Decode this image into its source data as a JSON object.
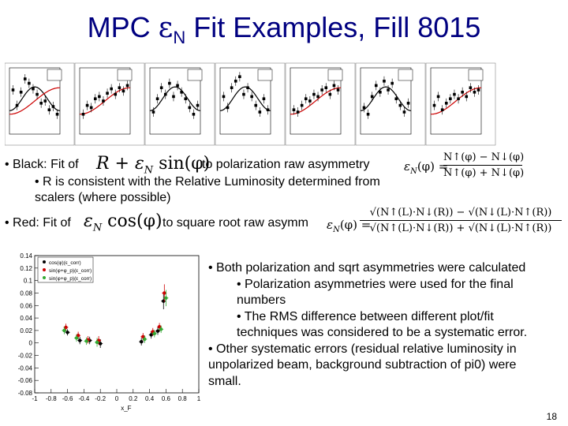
{
  "title": {
    "prefix": "MPC ",
    "epsilon": "ε",
    "sub": "N",
    "suffix": " Fit Examples, Fill 8015"
  },
  "bullets_top": {
    "black_prefix": "• Black: Fit of",
    "black_suffix": "to polarization raw asymmetry",
    "black_sub1": "• R is consistent with the Relative Luminosity determined from",
    "black_sub2": "scalers (where possible)",
    "red_prefix": "• Red: Fit of",
    "red_suffix": "to square root raw asymm"
  },
  "formulas": {
    "fit_black": {
      "a": "R + ε",
      "sub": "N",
      "b": " sin(φ)"
    },
    "fit_red": {
      "a": "ε",
      "sub": "N",
      "b": " cos(φ)"
    },
    "eps_label": "ε",
    "eps_sub": "N",
    "eps_arg": "(φ) =",
    "raw_num": "N↑(φ) − N↓(φ)",
    "raw_den": "N↑(φ) + N↓(φ)",
    "sqrt_num": "√(N↑(L)·N↓(R)) − √(N↓(L)·N↑(R))",
    "sqrt_den": "√(N↑(L)·N↓(R)) + √(N↓(L)·N↑(R))"
  },
  "bullets_bottom": [
    {
      "level": 0,
      "lines": [
        "• Both polarization and sqrt asymmetries were calculated"
      ]
    },
    {
      "level": 1,
      "lines": [
        "• Polarization asymmetries were used for the final",
        "numbers"
      ]
    },
    {
      "level": 1,
      "lines": [
        "• The RMS difference between different plot/fit",
        "techniques was considered to be a systematic error."
      ]
    },
    {
      "level": 0,
      "lines": [
        "• Other systematic errors (residual relative luminosity in",
        "unpolarized beam, background subtraction of pi0) were",
        "small."
      ]
    }
  ],
  "page_number": "18",
  "colors": {
    "title": "#000080",
    "black_fit": "#000000",
    "red_fit": "#cc0000",
    "green_series": "#33aa33"
  },
  "chart_data": [
    {
      "type": "scatter",
      "title": "",
      "xlabel": "x_F",
      "ylabel": "",
      "xlim": [
        -1,
        1
      ],
      "ylim": [
        -0.08,
        0.14
      ],
      "x_ticks": [
        "-1",
        "-0.8",
        "-0.6",
        "-0.4",
        "-0.2",
        "0",
        "0.2",
        "0.4",
        "0.6",
        "0.8",
        "1"
      ],
      "y_ticks": [
        "0.14",
        "0.12",
        "0.1",
        "0.08",
        "0.06",
        "0.04",
        "0.02",
        "0",
        "-0.02",
        "-0.04",
        "-0.06",
        "-0.08"
      ],
      "legend_position": "top-left",
      "series": [
        {
          "name": "cos(φ)(ε_corr)",
          "color": "#000000",
          "points": [
            [
              -0.6,
              0.017,
              0.005
            ],
            [
              -0.45,
              0.004,
              0.006
            ],
            [
              -0.33,
              0.004,
              0.006
            ],
            [
              -0.2,
              -0.001,
              0.007
            ],
            [
              0.3,
              0.002,
              0.006
            ],
            [
              0.42,
              0.013,
              0.006
            ],
            [
              0.5,
              0.019,
              0.006
            ],
            [
              0.57,
              0.067,
              0.013
            ]
          ]
        },
        {
          "name": "sin(φ+φ_p)(ε_corr)",
          "color": "#cc0000",
          "points": [
            [
              -0.62,
              0.025,
              0.006
            ],
            [
              -0.47,
              0.012,
              0.006
            ],
            [
              -0.35,
              0.005,
              0.006
            ],
            [
              -0.22,
              0.004,
              0.007
            ],
            [
              0.32,
              0.01,
              0.006
            ],
            [
              0.44,
              0.018,
              0.006
            ],
            [
              0.52,
              0.026,
              0.006
            ],
            [
              0.58,
              0.08,
              0.014
            ]
          ]
        },
        {
          "name": "sin(φ+φ_p)(ε_corr)",
          "color": "#33aa33",
          "points": [
            [
              -0.64,
              0.02,
              0.006
            ],
            [
              -0.49,
              0.008,
              0.006
            ],
            [
              -0.37,
              0.003,
              0.006
            ],
            [
              -0.24,
              0.001,
              0.007
            ],
            [
              0.34,
              0.006,
              0.006
            ],
            [
              0.46,
              0.015,
              0.006
            ],
            [
              0.54,
              0.022,
              0.006
            ],
            [
              0.6,
              0.072,
              0.013
            ]
          ]
        }
      ]
    },
    {
      "type": "scatter",
      "panel": 1,
      "fits": [
        "black",
        "red"
      ],
      "points": [
        [
          -2.7,
          0.01
        ],
        [
          -2.2,
          -0.004
        ],
        [
          -1.7,
          0.008
        ],
        [
          -1.2,
          0.02
        ],
        [
          -0.7,
          0.016
        ],
        [
          -0.2,
          0.011
        ],
        [
          0.3,
          0.006
        ],
        [
          0.8,
          -0.002
        ],
        [
          1.3,
          0.0
        ],
        [
          1.8,
          -0.008
        ],
        [
          2.3,
          -0.005
        ],
        [
          2.8,
          -0.012
        ]
      ]
    },
    {
      "type": "scatter",
      "panel": 2,
      "fits": [
        "red"
      ],
      "points": [
        [
          -2.7,
          -0.012
        ],
        [
          -2.2,
          -0.004
        ],
        [
          -1.7,
          -0.006
        ],
        [
          -1.2,
          0.002
        ],
        [
          -0.7,
          0.004
        ],
        [
          -0.2,
          0.0
        ],
        [
          0.3,
          0.007
        ],
        [
          0.8,
          0.011
        ],
        [
          1.3,
          0.006
        ],
        [
          1.8,
          0.012
        ],
        [
          2.3,
          0.009
        ],
        [
          2.8,
          0.014
        ]
      ]
    },
    {
      "type": "scatter",
      "panel": 3,
      "fits": [
        "black"
      ],
      "points": [
        [
          -2.7,
          -0.01
        ],
        [
          -2.2,
          0.002
        ],
        [
          -1.7,
          0.012
        ],
        [
          -1.2,
          0.006
        ],
        [
          -0.7,
          0.016
        ],
        [
          -0.2,
          0.004
        ],
        [
          0.3,
          0.014
        ],
        [
          0.8,
          0.008
        ],
        [
          1.3,
          0.002
        ],
        [
          1.8,
          -0.006
        ],
        [
          2.3,
          -0.012
        ],
        [
          2.8,
          -0.004
        ]
      ]
    },
    {
      "type": "scatter",
      "panel": 4,
      "fits": [
        "black"
      ],
      "points": [
        [
          -2.7,
          0.004
        ],
        [
          -2.2,
          -0.006
        ],
        [
          -1.7,
          0.012
        ],
        [
          -1.2,
          0.018
        ],
        [
          -0.7,
          0.022
        ],
        [
          -0.2,
          0.006
        ],
        [
          0.3,
          0.012
        ],
        [
          0.8,
          0.004
        ],
        [
          1.3,
          -0.004
        ],
        [
          1.8,
          -0.01
        ],
        [
          2.3,
          0.002
        ],
        [
          2.8,
          -0.008
        ]
      ]
    },
    {
      "type": "scatter",
      "panel": 5,
      "fits": [
        "red"
      ],
      "points": [
        [
          -2.7,
          -0.008
        ],
        [
          -2.2,
          -0.01
        ],
        [
          -1.7,
          -0.004
        ],
        [
          -1.2,
          0.002
        ],
        [
          -0.7,
          0.0
        ],
        [
          -0.2,
          0.006
        ],
        [
          0.3,
          0.004
        ],
        [
          0.8,
          0.01
        ],
        [
          1.3,
          0.012
        ],
        [
          1.8,
          0.006
        ],
        [
          2.3,
          0.014
        ],
        [
          2.8,
          0.01
        ]
      ]
    },
    {
      "type": "scatter",
      "panel": 6,
      "fits": [
        "black"
      ],
      "points": [
        [
          -2.7,
          -0.006
        ],
        [
          -2.2,
          -0.012
        ],
        [
          -1.7,
          0.004
        ],
        [
          -1.2,
          0.014
        ],
        [
          -0.7,
          0.008
        ],
        [
          -0.2,
          0.018
        ],
        [
          0.3,
          0.01
        ],
        [
          0.8,
          0.016
        ],
        [
          1.3,
          0.002
        ],
        [
          1.8,
          -0.004
        ],
        [
          2.3,
          -0.01
        ],
        [
          2.8,
          -0.002
        ]
      ]
    },
    {
      "type": "scatter",
      "panel": 7,
      "fits": [
        "red"
      ],
      "points": [
        [
          -2.7,
          -0.004
        ],
        [
          -2.2,
          0.004
        ],
        [
          -1.7,
          -0.008
        ],
        [
          -1.2,
          -0.002
        ],
        [
          -0.7,
          0.002
        ],
        [
          -0.2,
          0.006
        ],
        [
          0.3,
          0.002
        ],
        [
          0.8,
          0.008
        ],
        [
          1.3,
          0.004
        ],
        [
          1.8,
          0.012
        ],
        [
          2.3,
          0.008
        ],
        [
          2.8,
          0.01
        ]
      ]
    }
  ]
}
